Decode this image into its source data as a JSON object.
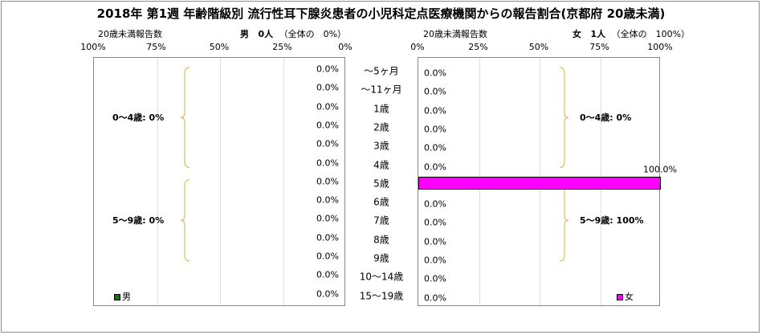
{
  "title": "2018年 第1週 年齢階級別 流行性耳下腺炎患者の小児科定点医療機関からの報告割合(京都府 20歳未満)",
  "colors": {
    "male": "#1a6e1a",
    "female": "#ff00ff",
    "grid": "#dedede",
    "brace": "#d8c060"
  },
  "age_groups": [
    "～5ヶ月",
    "～11ヶ月",
    "1歳",
    "2歳",
    "3歳",
    "4歳",
    "5歳",
    "6歳",
    "7歳",
    "8歳",
    "9歳",
    "10～14歳",
    "15～19歳"
  ],
  "chart_data": [
    {
      "type": "bar",
      "orientation": "horizontal",
      "reversed_axis": true,
      "panel_label": "20歳未満報告数",
      "sex_label": "男",
      "count_text": "0人",
      "share_text": "（全体の　0%）",
      "ticks": [
        "100%",
        "75%",
        "50%",
        "25%",
        "0%"
      ],
      "xlim": [
        0,
        100
      ],
      "categories": [
        "～5ヶ月",
        "～11ヶ月",
        "1歳",
        "2歳",
        "3歳",
        "4歳",
        "5歳",
        "6歳",
        "7歳",
        "8歳",
        "9歳",
        "10～14歳",
        "15～19歳"
      ],
      "series": [
        {
          "name": "男",
          "values": [
            0,
            0,
            0,
            0,
            0,
            0,
            0,
            0,
            0,
            0,
            0,
            0,
            0
          ]
        }
      ],
      "labels": [
        "0.0%",
        "0.0%",
        "0.0%",
        "0.0%",
        "0.0%",
        "0.0%",
        "0.0%",
        "0.0%",
        "0.0%",
        "0.0%",
        "0.0%",
        "0.0%",
        "0.0%"
      ],
      "annotations": [
        "0～4歳: 0%",
        "5～9歳: 0%"
      ]
    },
    {
      "type": "bar",
      "orientation": "horizontal",
      "reversed_axis": false,
      "panel_label": "20歳未満報告数",
      "sex_label": "女",
      "count_text": "1人",
      "share_text": "（全体の　100%）",
      "ticks": [
        "0%",
        "25%",
        "50%",
        "75%",
        "100%"
      ],
      "xlim": [
        0,
        100
      ],
      "categories": [
        "～5ヶ月",
        "～11ヶ月",
        "1歳",
        "2歳",
        "3歳",
        "4歳",
        "5歳",
        "6歳",
        "7歳",
        "8歳",
        "9歳",
        "10～14歳",
        "15～19歳"
      ],
      "series": [
        {
          "name": "女",
          "values": [
            0,
            0,
            0,
            0,
            0,
            0,
            100,
            0,
            0,
            0,
            0,
            0,
            0
          ]
        }
      ],
      "labels": [
        "0.0%",
        "0.0%",
        "0.0%",
        "0.0%",
        "0.0%",
        "0.0%",
        "100.0%",
        "0.0%",
        "0.0%",
        "0.0%",
        "0.0%",
        "0.0%",
        "0.0%"
      ],
      "annotations": [
        "0～4歳: 0%",
        "5～9歳: 100%"
      ]
    }
  ]
}
